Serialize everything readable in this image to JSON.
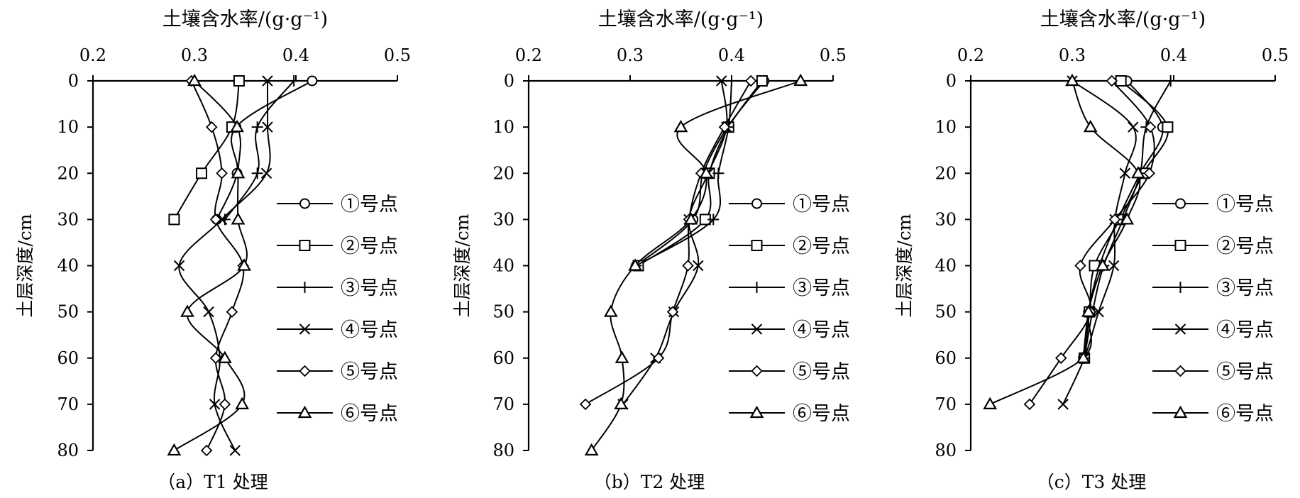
{
  "chart_data": [
    {
      "type": "line",
      "title": "土壤含水率/(g·g⁻¹)",
      "caption": "（a）T1 处理",
      "ylabel": "土层深度/cm",
      "xlim": [
        0.2,
        0.5
      ],
      "ylim": [
        0,
        80
      ],
      "x_ticks": [
        "0.2",
        "0.3",
        "0.4",
        "0.5"
      ],
      "y_ticks": [
        "0",
        "10",
        "20",
        "30",
        "40",
        "50",
        "60",
        "70",
        "80"
      ],
      "depth": [
        0,
        10,
        20,
        30,
        40,
        50,
        60,
        70,
        80
      ],
      "legend_position": "right",
      "series": [
        {
          "name": "①号点",
          "marker": "circle",
          "points": [
            [
              0.416,
              0
            ],
            [
              0.341,
              10
            ],
            [
              0.342,
              20
            ],
            [
              0.322,
              30
            ]
          ]
        },
        {
          "name": "②号点",
          "marker": "square",
          "points": [
            [
              0.344,
              0
            ],
            [
              0.337,
              10
            ],
            [
              0.307,
              20
            ],
            [
              0.28,
              30
            ]
          ]
        },
        {
          "name": "③号点",
          "marker": "plus",
          "points": [
            [
              0.398,
              0
            ],
            [
              0.362,
              10
            ],
            [
              0.362,
              20
            ],
            [
              0.33,
              30
            ]
          ]
        },
        {
          "name": "④号点",
          "marker": "x",
          "points": [
            [
              0.372,
              0
            ],
            [
              0.372,
              10
            ],
            [
              0.371,
              20
            ],
            [
              0.327,
              30
            ],
            [
              0.285,
              40
            ],
            [
              0.314,
              50
            ],
            [
              0.325,
              60
            ],
            [
              0.32,
              70
            ],
            [
              0.34,
              80
            ]
          ]
        },
        {
          "name": "⑤号点",
          "marker": "diamond",
          "points": [
            [
              0.297,
              0
            ],
            [
              0.317,
              10
            ],
            [
              0.327,
              20
            ],
            [
              0.321,
              30
            ],
            [
              0.348,
              40
            ],
            [
              0.337,
              50
            ],
            [
              0.321,
              60
            ],
            [
              0.33,
              70
            ],
            [
              0.312,
              80
            ]
          ]
        },
        {
          "name": "⑥号点",
          "marker": "triangle",
          "points": [
            [
              0.3,
              0
            ],
            [
              0.342,
              10
            ],
            [
              0.343,
              20
            ],
            [
              0.343,
              30
            ],
            [
              0.349,
              40
            ],
            [
              0.293,
              50
            ],
            [
              0.33,
              60
            ],
            [
              0.347,
              70
            ],
            [
              0.28,
              80
            ]
          ]
        }
      ]
    },
    {
      "type": "line",
      "title": "土壤含水率/(g·g⁻¹)",
      "caption": "（b）T2 处理",
      "ylabel": "土层深度/cm",
      "xlim": [
        0.2,
        0.5
      ],
      "ylim": [
        0,
        80
      ],
      "x_ticks": [
        "0.2",
        "0.3",
        "0.4",
        "0.5"
      ],
      "y_ticks": [
        "0",
        "10",
        "20",
        "30",
        "40",
        "50",
        "60",
        "70",
        "80"
      ],
      "depth": [
        0,
        10,
        20,
        30,
        40,
        50,
        60,
        70,
        80
      ],
      "legend_position": "right",
      "series": [
        {
          "name": "①号点",
          "marker": "circle",
          "points": [
            [
              0.432,
              0
            ],
            [
              0.396,
              10
            ],
            [
              0.372,
              20
            ],
            [
              0.362,
              30
            ],
            [
              0.306,
              40
            ]
          ]
        },
        {
          "name": "②号点",
          "marker": "square",
          "points": [
            [
              0.43,
              0
            ],
            [
              0.397,
              10
            ],
            [
              0.378,
              20
            ],
            [
              0.374,
              30
            ],
            [
              0.308,
              40
            ]
          ]
        },
        {
          "name": "③号点",
          "marker": "plus",
          "points": [
            [
              0.4,
              0
            ],
            [
              0.397,
              10
            ],
            [
              0.387,
              20
            ],
            [
              0.382,
              30
            ],
            [
              0.306,
              40
            ]
          ]
        },
        {
          "name": "④号点",
          "marker": "x",
          "points": [
            [
              0.39,
              0
            ],
            [
              0.395,
              10
            ],
            [
              0.377,
              20
            ],
            [
              0.358,
              30
            ],
            [
              0.367,
              40
            ],
            [
              0.343,
              50
            ],
            [
              0.325,
              60
            ],
            [
              0.293,
              70
            ]
          ]
        },
        {
          "name": "⑤号点",
          "marker": "diamond",
          "points": [
            [
              0.419,
              0
            ],
            [
              0.393,
              10
            ],
            [
              0.37,
              20
            ],
            [
              0.358,
              30
            ],
            [
              0.357,
              40
            ],
            [
              0.342,
              50
            ],
            [
              0.328,
              60
            ],
            [
              0.256,
              70
            ]
          ]
        },
        {
          "name": "⑥号点",
          "marker": "triangle",
          "points": [
            [
              0.468,
              0
            ],
            [
              0.35,
              10
            ],
            [
              0.375,
              20
            ],
            [
              0.36,
              30
            ],
            [
              0.305,
              40
            ],
            [
              0.281,
              50
            ],
            [
              0.292,
              60
            ],
            [
              0.291,
              70
            ],
            [
              0.262,
              80
            ]
          ]
        }
      ]
    },
    {
      "type": "line",
      "title": "土壤含水率/(g·g⁻¹)",
      "caption": "（c）T3 处理",
      "ylabel": "土层深度/cm",
      "xlim": [
        0.2,
        0.5
      ],
      "ylim": [
        0,
        80
      ],
      "x_ticks": [
        "0.2",
        "0.3",
        "0.4",
        "0.5"
      ],
      "y_ticks": [
        "0",
        "10",
        "20",
        "30",
        "40",
        "50",
        "60",
        "70",
        "80"
      ],
      "depth": [
        0,
        10,
        20,
        30,
        40,
        50,
        60,
        70,
        80
      ],
      "legend_position": "right",
      "series": [
        {
          "name": "①号点",
          "marker": "circle",
          "points": [
            [
              0.354,
              0
            ],
            [
              0.389,
              10
            ],
            [
              0.367,
              20
            ],
            [
              0.345,
              30
            ],
            [
              0.327,
              40
            ],
            [
              0.316,
              50
            ],
            [
              0.311,
              60
            ]
          ]
        },
        {
          "name": "②号点",
          "marker": "square",
          "points": [
            [
              0.348,
              0
            ],
            [
              0.394,
              10
            ],
            [
              0.37,
              20
            ],
            [
              0.347,
              30
            ],
            [
              0.322,
              40
            ],
            [
              0.317,
              50
            ],
            [
              0.312,
              60
            ]
          ]
        },
        {
          "name": "③号点",
          "marker": "plus",
          "points": [
            [
              0.397,
              0
            ],
            [
              0.373,
              10
            ],
            [
              0.367,
              20
            ],
            [
              0.35,
              30
            ],
            [
              0.331,
              40
            ],
            [
              0.32,
              50
            ],
            [
              0.312,
              60
            ]
          ]
        },
        {
          "name": "④号点",
          "marker": "x",
          "points": [
            [
              0.3,
              0
            ],
            [
              0.36,
              10
            ],
            [
              0.352,
              20
            ],
            [
              0.342,
              30
            ],
            [
              0.341,
              40
            ],
            [
              0.326,
              50
            ],
            [
              0.312,
              60
            ],
            [
              0.291,
              70
            ]
          ]
        },
        {
          "name": "⑤号点",
          "marker": "diamond",
          "points": [
            [
              0.339,
              0
            ],
            [
              0.377,
              10
            ],
            [
              0.376,
              20
            ],
            [
              0.342,
              30
            ],
            [
              0.308,
              40
            ],
            [
              0.318,
              50
            ],
            [
              0.289,
              60
            ],
            [
              0.258,
              70
            ]
          ]
        },
        {
          "name": "⑥号点",
          "marker": "triangle",
          "points": [
            [
              0.3,
              0
            ],
            [
              0.318,
              10
            ],
            [
              0.365,
              20
            ],
            [
              0.354,
              30
            ],
            [
              0.33,
              40
            ],
            [
              0.316,
              50
            ],
            [
              0.311,
              60
            ],
            [
              0.219,
              70
            ]
          ]
        }
      ]
    }
  ]
}
